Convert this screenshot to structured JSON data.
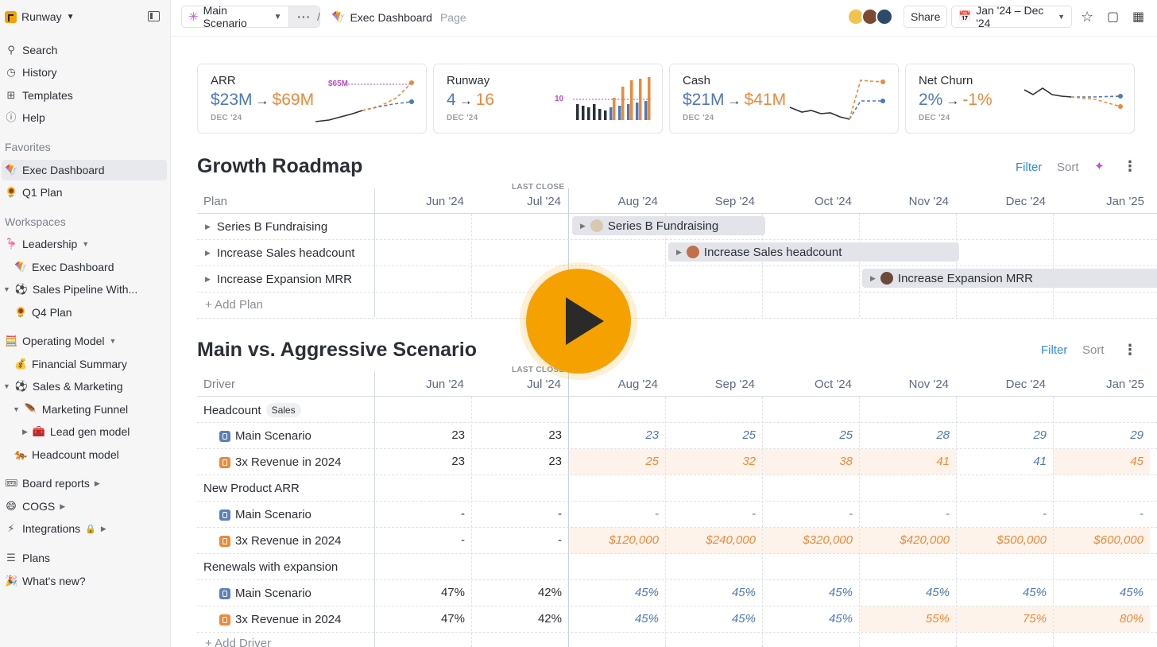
{
  "sidebar": {
    "workspace": "Runway",
    "nav": [
      {
        "label": "Search",
        "icon": "search-icon"
      },
      {
        "label": "History",
        "icon": "clock-icon"
      },
      {
        "label": "Templates",
        "icon": "grid-icon"
      },
      {
        "label": "Help",
        "icon": "help-icon"
      }
    ],
    "favorites_title": "Favorites",
    "favorites": [
      {
        "label": "Exec Dashboard",
        "icon": "kite-icon"
      },
      {
        "label": "Q1 Plan",
        "icon": "sunflower-icon"
      }
    ],
    "workspaces_title": "Workspaces",
    "workspaces": [
      {
        "label": "Leadership",
        "icon": "flamingo-icon"
      },
      {
        "label": "Exec Dashboard",
        "icon": "kite-icon"
      },
      {
        "label": "Sales Pipeline With...",
        "icon": "soccer-icon"
      },
      {
        "label": "Q4 Plan",
        "icon": "sunflower-icon"
      },
      {
        "label": "Operating Model",
        "icon": "abacus-icon"
      },
      {
        "label": "Financial Summary",
        "icon": "moneybag-icon"
      },
      {
        "label": "Sales & Marketing",
        "icon": "soccer-icon"
      },
      {
        "label": "Marketing Funnel",
        "icon": "feather-icon"
      },
      {
        "label": "Lead gen model",
        "icon": "toolbox-icon"
      },
      {
        "label": "Headcount model",
        "icon": "tiger-icon"
      },
      {
        "label": "Board reports",
        "icon": "ticket-icon"
      },
      {
        "label": "COGS",
        "icon": "grin-icon"
      },
      {
        "label": "Integrations",
        "icon": "plug-icon"
      }
    ],
    "bottom": [
      {
        "label": "Plans",
        "icon": "plans-icon"
      },
      {
        "label": "What's new?",
        "icon": "party-icon"
      }
    ]
  },
  "topbar": {
    "scenario": "Main Scenario",
    "breadcrumb_sep": "/",
    "page_name": "Exec Dashboard",
    "page_type": "Page",
    "share": "Share",
    "date_range": "Jan '24 – Dec '24"
  },
  "kpis": [
    {
      "label": "ARR",
      "from": "$23M",
      "to": "$69M",
      "sub": "DEC '24",
      "annotation": "$65M"
    },
    {
      "label": "Runway",
      "from": "4",
      "to": "16",
      "sub": "DEC '24",
      "annotation": "10"
    },
    {
      "label": "Cash",
      "from": "$21M",
      "to": "$41M",
      "sub": "DEC '24"
    },
    {
      "label": "Net Churn",
      "from": "2%",
      "to": "-1%",
      "sub": "DEC '24"
    }
  ],
  "roadmap": {
    "title": "Growth Roadmap",
    "filter": "Filter",
    "sort": "Sort",
    "first_col": "Plan",
    "last_close": "LAST CLOSE",
    "months": [
      "Jun '24",
      "Jul '24",
      "Aug '24",
      "Sep '24",
      "Oct '24",
      "Nov '24",
      "Dec '24",
      "Jan '25"
    ],
    "plans": [
      "Series B Fundraising",
      "Increase Sales headcount",
      "Increase Expansion MRR"
    ],
    "add": "Add Plan"
  },
  "scenarios": {
    "title": "Main vs. Aggressive Scenario",
    "filter": "Filter",
    "sort": "Sort",
    "first_col": "Driver",
    "last_close": "LAST CLOSE",
    "months": [
      "Jun '24",
      "Jul '24",
      "Aug '24",
      "Sep '24",
      "Oct '24",
      "Nov '24",
      "Dec '24",
      "Jan '25"
    ],
    "drivers": [
      {
        "name": "Headcount",
        "badge": "Sales",
        "main_label": "Main Scenario",
        "main": [
          "23",
          "23",
          "23",
          "25",
          "25",
          "28",
          "29",
          "29"
        ],
        "alt_label": "3x Revenue in 2024",
        "alt": [
          "23",
          "23",
          "25",
          "32",
          "38",
          "41",
          "41",
          "45"
        ]
      },
      {
        "name": "New Product ARR",
        "badge": "",
        "main_label": "Main Scenario",
        "main": [
          "-",
          "-",
          "-",
          "-",
          "-",
          "-",
          "-",
          "-"
        ],
        "alt_label": "3x Revenue in 2024",
        "alt": [
          "-",
          "-",
          "$120,000",
          "$240,000",
          "$320,000",
          "$420,000",
          "$500,000",
          "$600,000"
        ]
      },
      {
        "name": "Renewals with expansion",
        "badge": "",
        "main_label": "Main Scenario",
        "main": [
          "47%",
          "42%",
          "45%",
          "45%",
          "45%",
          "45%",
          "45%",
          "45%"
        ],
        "alt_label": "3x Revenue in 2024",
        "alt": [
          "47%",
          "42%",
          "45%",
          "45%",
          "45%",
          "55%",
          "75%",
          "80%"
        ]
      }
    ],
    "add": "Add Driver"
  }
}
